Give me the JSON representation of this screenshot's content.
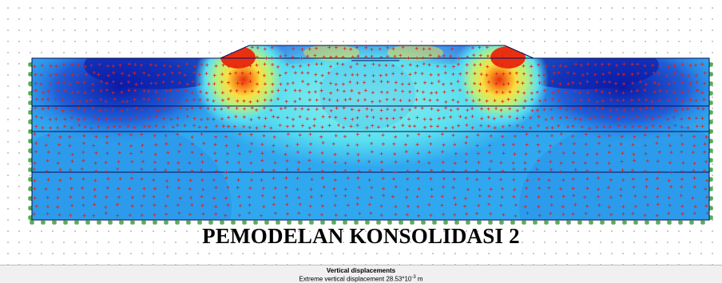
{
  "plot": {
    "title": "PEMODELAN KONSOLIDASI 2",
    "colorscale": [
      "#0a1aa8",
      "#1f6fe0",
      "#2fa8f0",
      "#5be0f0",
      "#b8f080",
      "#f8e040",
      "#f89020",
      "#e83010"
    ],
    "mesh_line_color": "#0a0a5a",
    "stress_point_color": "#e0201c",
    "boundary_fixity_color": "#1a8f1a"
  },
  "status": {
    "heading": "Vertical displacements",
    "line_prefix": "Extreme vertical displacement 28.53*10",
    "line_exponent": "-3",
    "line_unit": " m"
  }
}
